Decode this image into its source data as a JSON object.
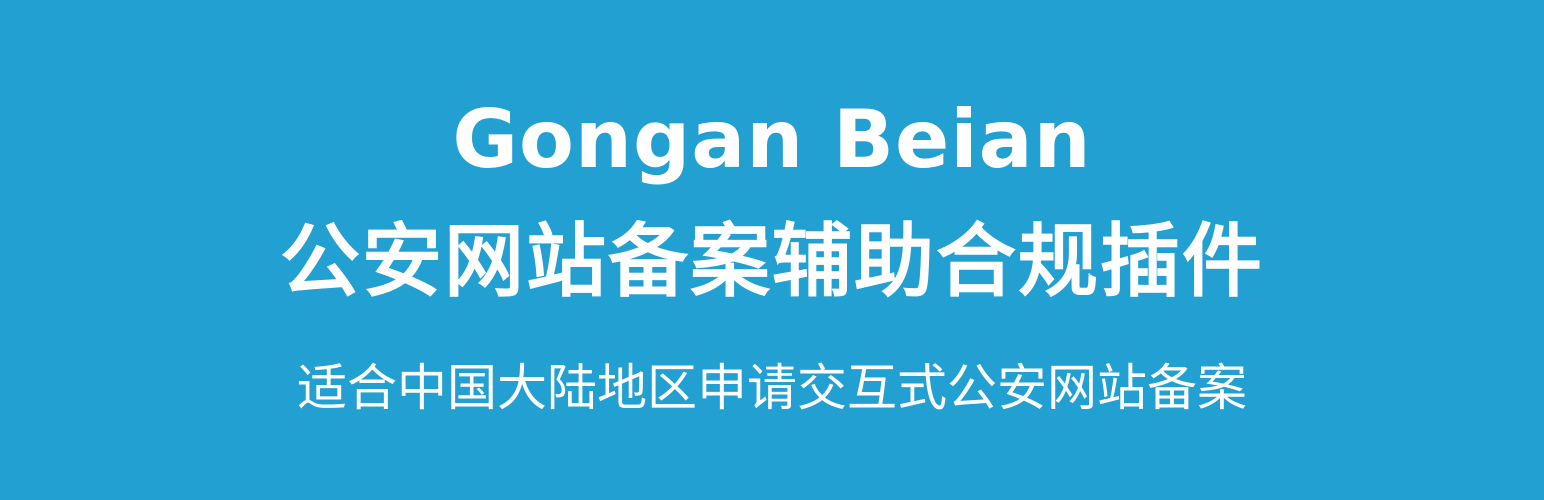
{
  "banner": {
    "background_color": "#23a0d2",
    "text_color": "#ffffff",
    "title_en": "Gongan Beian",
    "title_zh": "公安网站备案辅助合规插件",
    "subtitle": "适合中国大陆地区申请交互式公安网站备案"
  }
}
